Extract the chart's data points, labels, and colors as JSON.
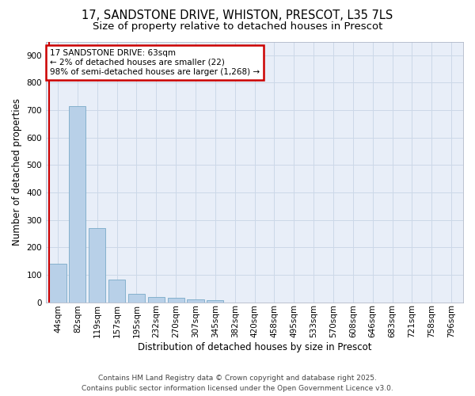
{
  "title_line1": "17, SANDSTONE DRIVE, WHISTON, PRESCOT, L35 7LS",
  "title_line2": "Size of property relative to detached houses in Prescot",
  "xlabel": "Distribution of detached houses by size in Prescot",
  "ylabel": "Number of detached properties",
  "categories": [
    "44sqm",
    "82sqm",
    "119sqm",
    "157sqm",
    "195sqm",
    "232sqm",
    "270sqm",
    "307sqm",
    "345sqm",
    "382sqm",
    "420sqm",
    "458sqm",
    "495sqm",
    "533sqm",
    "570sqm",
    "608sqm",
    "646sqm",
    "683sqm",
    "721sqm",
    "758sqm",
    "796sqm"
  ],
  "values": [
    140,
    715,
    270,
    83,
    30,
    20,
    15,
    10,
    8,
    0,
    0,
    0,
    0,
    0,
    0,
    0,
    0,
    0,
    0,
    0,
    0
  ],
  "bar_color": "#b8d0e8",
  "bar_edge_color": "#7aaac8",
  "property_line_color": "#cc0000",
  "annotation_text_line1": "17 SANDSTONE DRIVE: 63sqm",
  "annotation_text_line2": "← 2% of detached houses are smaller (22)",
  "annotation_text_line3": "98% of semi-detached houses are larger (1,268) →",
  "annotation_box_color": "#ffffff",
  "annotation_edge_color": "#cc0000",
  "ylim": [
    0,
    950
  ],
  "yticks": [
    0,
    100,
    200,
    300,
    400,
    500,
    600,
    700,
    800,
    900
  ],
  "grid_color": "#ccd8e8",
  "background_color": "#e8eef8",
  "footer_line1": "Contains HM Land Registry data © Crown copyright and database right 2025.",
  "footer_line2": "Contains public sector information licensed under the Open Government Licence v3.0.",
  "title_fontsize": 10.5,
  "subtitle_fontsize": 9.5,
  "axis_label_fontsize": 8.5,
  "tick_fontsize": 7.5,
  "annotation_fontsize": 7.5,
  "footer_fontsize": 6.5
}
